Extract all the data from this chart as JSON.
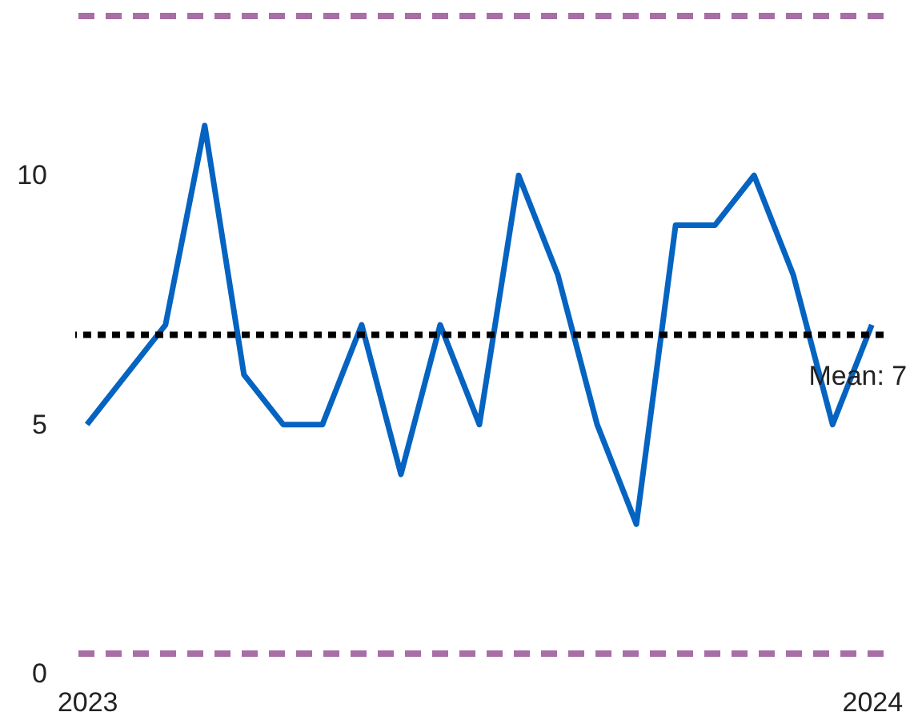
{
  "chart_data": {
    "type": "line",
    "categories": [
      "2023",
      null,
      null,
      null,
      null,
      null,
      null,
      null,
      null,
      null,
      null,
      null,
      null,
      null,
      null,
      null,
      null,
      null,
      null,
      null,
      "2024"
    ],
    "series": [
      {
        "color": "#0563c1",
        "values": [
          5,
          6,
          7,
          11,
          6,
          5,
          5,
          7,
          4,
          7,
          5,
          10,
          8,
          5,
          3,
          9,
          9,
          10,
          8,
          5,
          7
        ]
      }
    ],
    "ylim": [
      0,
      13.2
    ],
    "yticks": [
      0,
      5,
      10
    ],
    "grid": false,
    "marker": "none",
    "line_style": "solid",
    "ref_lines": [
      {
        "axis": "y",
        "value": 6.8,
        "label": "Mean: 7",
        "color": "#000000",
        "line_style": "dotted"
      },
      {
        "axis": "y",
        "value": 13.2,
        "color": "#a86ea6",
        "line_style": "dashed"
      },
      {
        "axis": "y",
        "value": 0.4,
        "color": "#a86ea6",
        "line_style": "dashed"
      }
    ]
  }
}
